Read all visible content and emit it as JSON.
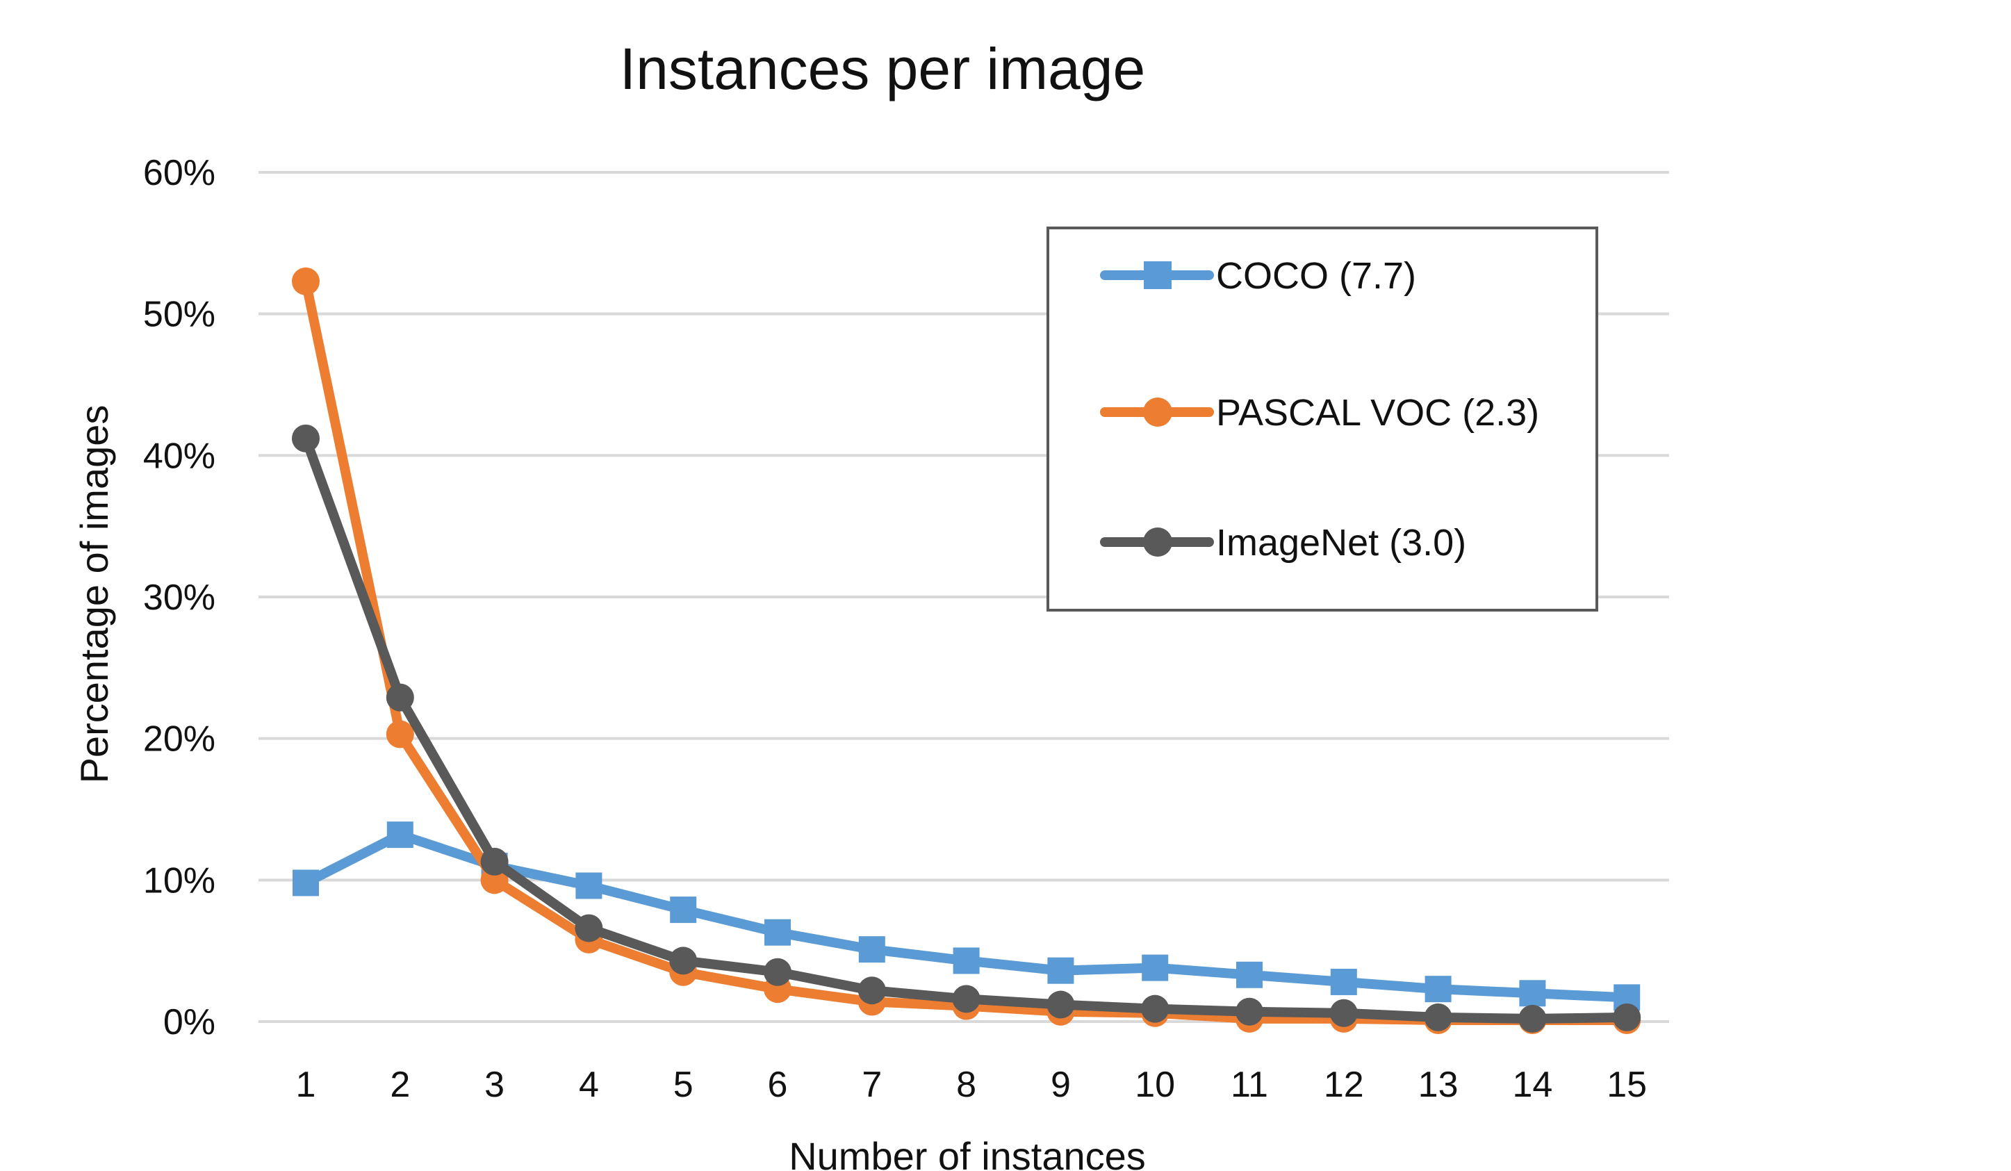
{
  "colors": {
    "background": "#ffffff",
    "grid": "#d9d9d9",
    "text": "#111111",
    "legend_border": "#595959"
  },
  "chart_data": {
    "type": "line",
    "title": "Instances per image",
    "xlabel": "Number of instances",
    "ylabel": "Percentage of images",
    "x": [
      1,
      2,
      3,
      4,
      5,
      6,
      7,
      8,
      9,
      10,
      11,
      12,
      13,
      14,
      15
    ],
    "x_tick_labels": [
      "1",
      "2",
      "3",
      "4",
      "5",
      "6",
      "7",
      "8",
      "9",
      "10",
      "11",
      "12",
      "13",
      "14",
      "15"
    ],
    "ylim": [
      0,
      60
    ],
    "y_ticks": [
      0,
      10,
      20,
      30,
      40,
      50,
      60
    ],
    "y_tick_labels": [
      "0%",
      "10%",
      "20%",
      "30%",
      "40%",
      "50%",
      "60%"
    ],
    "grid": true,
    "legend_position": "top-right",
    "series": [
      {
        "name": "COCO (7.7)",
        "color": "#5b9bd5",
        "marker": "square",
        "values": [
          9.8,
          13.2,
          11.0,
          9.6,
          7.9,
          6.3,
          5.1,
          4.3,
          3.6,
          3.8,
          3.3,
          2.8,
          2.3,
          2.0,
          1.7
        ]
      },
      {
        "name": "PASCAL VOC (2.3)",
        "color": "#ed7d31",
        "marker": "circle",
        "values": [
          52.3,
          20.3,
          10.0,
          5.8,
          3.5,
          2.3,
          1.4,
          1.1,
          0.7,
          0.6,
          0.2,
          0.2,
          0.1,
          0.1,
          0.1
        ]
      },
      {
        "name": "ImageNet (3.0)",
        "color": "#595959",
        "marker": "circle",
        "values": [
          41.2,
          22.9,
          11.3,
          6.6,
          4.3,
          3.5,
          2.2,
          1.6,
          1.2,
          0.9,
          0.7,
          0.6,
          0.3,
          0.2,
          0.3
        ]
      }
    ]
  }
}
